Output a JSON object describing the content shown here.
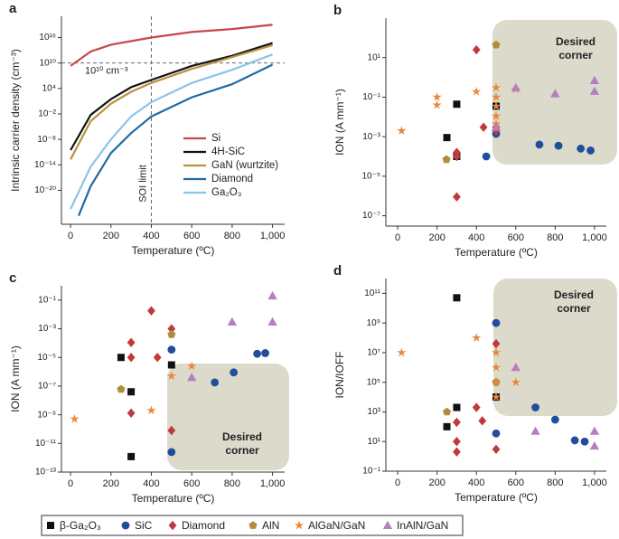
{
  "chart_data": [
    {
      "type": "line",
      "panel_label": "a",
      "x_label": "Temperature (ºC)",
      "y_label": "Intrinsic carrier density (cm⁻³)",
      "log_y": true,
      "xlim": [
        -45,
        1060
      ],
      "ylim": [
        1e-28,
        1e+21
      ],
      "xticks": [
        0,
        200,
        400,
        600,
        800,
        {
          "value": 1000,
          "label": "1,000"
        }
      ],
      "yticks": [
        {
          "value": 1e+16,
          "label": "10¹⁶"
        },
        {
          "value": 10000000000.0,
          "label": "10¹⁰"
        },
        {
          "value": 10000.0,
          "label": "10⁴"
        },
        {
          "value": 0.01,
          "label": "10⁻²"
        },
        {
          "value": 1e-08,
          "label": "10⁻⁸"
        },
        {
          "value": 1e-14,
          "label": "10⁻¹⁴"
        },
        {
          "value": 1e-20,
          "label": "10⁻²⁰"
        }
      ],
      "reference_lines": {
        "x": 400,
        "y": 10000000000.0
      },
      "annotations": [
        {
          "text": "10¹⁰ cm⁻³"
        },
        {
          "text": "SOI limit"
        }
      ],
      "series": [
        {
          "name": "Si",
          "color": "#c8474a",
          "x": [
            0,
            100,
            200,
            400,
            600,
            800,
            1000
          ],
          "values": [
            2000000000.0,
            5000000000000.0,
            200000000000000.0,
            1e+16,
            2e+17,
            1e+18,
            1e+19
          ]
        },
        {
          "name": "4H-SiC",
          "color": "#111111",
          "x": [
            0,
            100,
            200,
            300,
            400,
            600,
            800,
            1000
          ],
          "values": [
            3e-11,
            0.006,
            30.0,
            20000.0,
            1000000.0,
            2000000000.0,
            500000000000.0,
            500000000000000.0
          ]
        },
        {
          "name": "GaN (wurtzite)",
          "color": "#b8933f",
          "x": [
            0,
            100,
            200,
            300,
            400,
            600,
            800,
            1000
          ],
          "values": [
            2e-13,
            0.0002,
            2.5,
            1600.0,
            200000.0,
            400000000.0,
            250000000000.0,
            160000000000000.0
          ]
        },
        {
          "name": "Diamond",
          "color": "#1f6aa5",
          "x": [
            40,
            100,
            200,
            300,
            400,
            600,
            800,
            1000
          ],
          "values": [
            1e-26,
            1e-19,
            6e-12,
            3e-07,
            0.0025,
            80.0,
            100000.0,
            4000000000.0
          ]
        },
        {
          "name": "Ga₂O₃",
          "color": "#8cc4e6",
          "x": [
            0,
            100,
            200,
            300,
            400,
            600,
            800,
            1000
          ],
          "values": [
            4e-25,
            4e-15,
            1e-08,
            0.0025,
            6,
            200000.0,
            250000000.0,
            1000000000000.0
          ]
        }
      ]
    },
    {
      "type": "scatter",
      "panel_label": "b",
      "x_label": "Temperature (ºC)",
      "y_label": "ION (A mm⁻¹)",
      "log_y": true,
      "corner": [
        "Desired",
        "corner"
      ],
      "xlim": [
        -60,
        1060
      ],
      "ylim": [
        3e-08,
        1000.0
      ],
      "xticks": [
        0,
        200,
        400,
        600,
        800,
        {
          "value": 1000,
          "label": "1,000"
        }
      ],
      "yticks": [
        {
          "value": 10,
          "label": "10¹"
        },
        {
          "value": 0.1,
          "label": "10⁻¹"
        },
        {
          "value": 0.001,
          "label": "10⁻³"
        },
        {
          "value": 1e-05,
          "label": "10⁻⁵"
        },
        {
          "value": 1e-07,
          "label": "10⁻⁷"
        }
      ],
      "series": [
        {
          "x": [
            300,
            250,
            300,
            500
          ],
          "values": [
            0.044,
            0.0009,
            0.0001,
            0.035
          ]
        },
        {
          "x": [
            450,
            500,
            720,
            817,
            930,
            980
          ],
          "values": [
            0.0001,
            0.0014,
            0.0004,
            0.00035,
            0.00025,
            0.0002
          ]
        },
        {
          "x": [
            400,
            300,
            300,
            300,
            500,
            500,
            436
          ],
          "values": [
            25,
            9e-07,
            0.00016,
            0.0001,
            0.003,
            0.002,
            0.003
          ]
        },
        {
          "x": [
            500,
            248
          ],
          "values": [
            44,
            7e-05
          ]
        },
        {
          "x": [
            20,
            200,
            200,
            400,
            500,
            500,
            500,
            500,
            500,
            600
          ],
          "values": [
            0.002,
            0.1,
            0.04,
            0.19,
            0.3,
            0.1,
            0.035,
            0.011,
            0.0044,
            0.25
          ]
        },
        {
          "x": [
            600,
            800,
            1000,
            1000,
            500
          ],
          "values": [
            0.3,
            0.15,
            0.7,
            0.2,
            0.003
          ]
        }
      ]
    },
    {
      "type": "scatter",
      "panel_label": "c",
      "x_label": "Temperature (ºC)",
      "y_label": "ION (A mm⁻¹)",
      "log_y": true,
      "corner": [
        "Desired",
        "corner"
      ],
      "xlim": [
        -45,
        1060
      ],
      "ylim": [
        1e-13,
        1
      ],
      "xticks": [
        0,
        200,
        400,
        600,
        800,
        {
          "value": 1000,
          "label": "1,000"
        }
      ],
      "yticks": [
        {
          "value": 0.1,
          "label": "10⁻¹"
        },
        {
          "value": 0.001,
          "label": "10⁻³"
        },
        {
          "value": 1e-05,
          "label": "10⁻⁵"
        },
        {
          "value": 1e-07,
          "label": "10⁻⁷"
        },
        {
          "value": 1e-09,
          "label": "10⁻⁹"
        },
        {
          "value": 1e-11,
          "label": "10⁻¹¹"
        },
        {
          "value": 1e-13,
          "label": "10⁻¹³"
        }
      ],
      "series": [
        {
          "x": [
            250,
            300,
            300,
            500
          ],
          "values": [
            1e-05,
            4e-08,
            1.2e-12,
            3e-06
          ]
        },
        {
          "x": [
            500,
            500,
            714,
            808,
            924,
            964
          ],
          "values": [
            3.5e-05,
            2.5e-12,
            1.8e-07,
            9e-07,
            1.8e-05,
            2e-05
          ]
        },
        {
          "x": [
            300,
            300,
            300,
            400,
            430,
            500,
            500
          ],
          "values": [
            0.00011,
            1e-05,
            1.3e-09,
            0.018,
            1e-05,
            0.001,
            8e-11
          ]
        },
        {
          "x": [
            250,
            500
          ],
          "values": [
            6e-08,
            0.0004
          ]
        },
        {
          "x": [
            20,
            400,
            500,
            600
          ],
          "values": [
            5e-10,
            2e-09,
            5e-07,
            2.5e-06
          ]
        },
        {
          "x": [
            600,
            800,
            1000,
            1000
          ],
          "values": [
            4e-07,
            0.003,
            0.2,
            0.003
          ]
        }
      ]
    },
    {
      "type": "scatter",
      "panel_label": "d",
      "x_label": "Temperature (ºC)",
      "y_label": "ION/IOFF",
      "log_y": true,
      "corner": [
        "Desired",
        "corner"
      ],
      "xlim": [
        -60,
        1060
      ],
      "ylim": [
        0.1,
        1000000000000.0
      ],
      "xticks": [
        0,
        200,
        400,
        600,
        800,
        {
          "value": 1000,
          "label": "1,000"
        }
      ],
      "yticks": [
        {
          "value": 100000000000.0,
          "label": "10¹¹"
        },
        {
          "value": 1000000000.0,
          "label": "10⁹"
        },
        {
          "value": 10000000.0,
          "label": "10⁷"
        },
        {
          "value": 100000.0,
          "label": "10⁵"
        },
        {
          "value": 1000.0,
          "label": "10³"
        },
        {
          "value": 10,
          "label": "10¹"
        },
        {
          "value": 0.1,
          "label": "10⁻¹"
        }
      ],
      "series": [
        {
          "x": [
            300,
            300,
            250,
            500
          ],
          "values": [
            50000000000.0,
            2000.0,
            100,
            10000.0
          ]
        },
        {
          "x": [
            500,
            500,
            700,
            800,
            900,
            950
          ],
          "values": [
            1000000000.0,
            35,
            2000.0,
            300.0,
            12,
            10
          ]
        },
        {
          "x": [
            500,
            400,
            300,
            430,
            300,
            300,
            500
          ],
          "values": [
            40000000.0,
            2000.0,
            200.0,
            250.0,
            10,
            2,
            3
          ]
        },
        {
          "x": [
            500,
            250
          ],
          "values": [
            100000.0,
            1000.0
          ]
        },
        {
          "x": [
            20,
            400,
            500,
            500,
            500,
            500,
            600
          ],
          "values": [
            10000000.0,
            100000000.0,
            10000000.0,
            1000000.0,
            100000.0,
            10000.0,
            100000.0
          ]
        },
        {
          "x": [
            600,
            700,
            1000,
            1000
          ],
          "values": [
            1000000.0,
            50,
            50,
            5
          ]
        }
      ]
    }
  ],
  "legend": {
    "series": [
      {
        "name": "β-Ga₂O₃",
        "color": "#111111",
        "marker": "square"
      },
      {
        "name": "SiC",
        "color": "#1f4e9c",
        "marker": "circle"
      },
      {
        "name": "Diamond",
        "color": "#c0393b",
        "marker": "diamond"
      },
      {
        "name": "AlN",
        "color": "#b08d3b",
        "marker": "pentagon"
      },
      {
        "name": "AlGaN/GaN",
        "color": "#e8873a",
        "marker": "star"
      },
      {
        "name": "InAlN/GaN",
        "color": "#b57fc0",
        "marker": "triangle"
      }
    ]
  }
}
